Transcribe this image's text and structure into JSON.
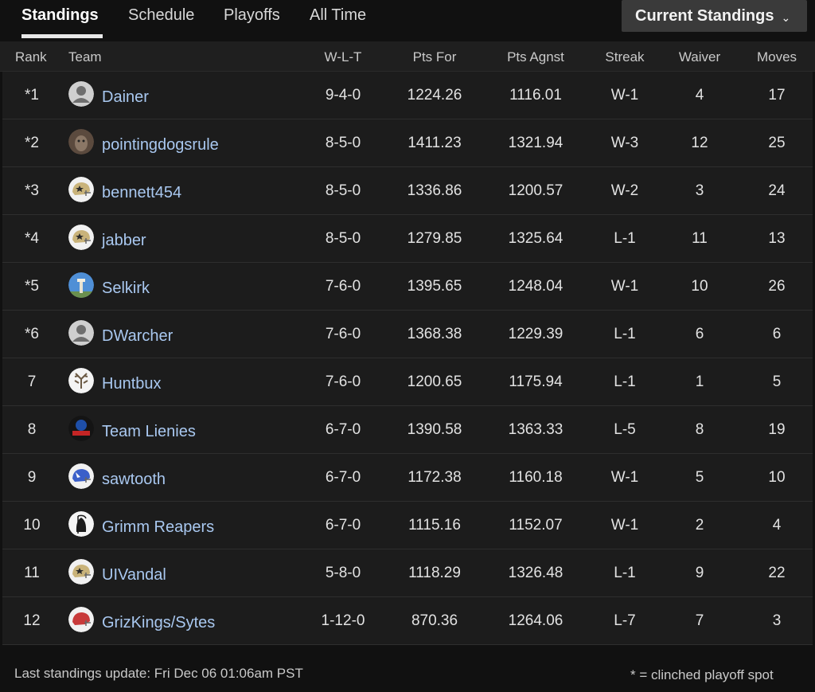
{
  "tabs": [
    {
      "label": "Standings"
    },
    {
      "label": "Schedule"
    },
    {
      "label": "Playoffs"
    },
    {
      "label": "All Time"
    }
  ],
  "dropdown": {
    "label": "Current Standings",
    "chevron": "⌄"
  },
  "columns": {
    "rank": "Rank",
    "team": "Team",
    "wlt": "W-L-T",
    "pts_for": "Pts For",
    "pts_agnst": "Pts Agnst",
    "streak": "Streak",
    "waiver": "Waiver",
    "moves": "Moves"
  },
  "rows": [
    {
      "rank": "*1",
      "team": "Dainer",
      "wlt": "9-4-0",
      "pts_for": "1224.26",
      "pts_agnst": "1116.01",
      "streak": "W-1",
      "waiver": "4",
      "moves": "17",
      "avatar": "default-avatar"
    },
    {
      "rank": "*2",
      "team": "pointingdogsrule",
      "wlt": "8-5-0",
      "pts_for": "1411.23",
      "pts_agnst": "1321.94",
      "streak": "W-3",
      "waiver": "12",
      "moves": "25",
      "avatar": "dog-photo-avatar"
    },
    {
      "rank": "*3",
      "team": "bennett454",
      "wlt": "8-5-0",
      "pts_for": "1336.86",
      "pts_agnst": "1200.57",
      "streak": "W-2",
      "waiver": "3",
      "moves": "24",
      "avatar": "gold-helmet-avatar"
    },
    {
      "rank": "*4",
      "team": "jabber",
      "wlt": "8-5-0",
      "pts_for": "1279.85",
      "pts_agnst": "1325.64",
      "streak": "L-1",
      "waiver": "11",
      "moves": "13",
      "avatar": "gold-helmet-avatar"
    },
    {
      "rank": "*5",
      "team": "Selkirk",
      "wlt": "7-6-0",
      "pts_for": "1395.65",
      "pts_agnst": "1248.04",
      "streak": "W-1",
      "waiver": "10",
      "moves": "26",
      "avatar": "tower-photo-avatar"
    },
    {
      "rank": "*6",
      "team": "DWarcher",
      "wlt": "7-6-0",
      "pts_for": "1368.38",
      "pts_agnst": "1229.39",
      "streak": "L-1",
      "waiver": "6",
      "moves": "6",
      "avatar": "default-avatar"
    },
    {
      "rank": "7",
      "team": "Huntbux",
      "wlt": "7-6-0",
      "pts_for": "1200.65",
      "pts_agnst": "1175.94",
      "streak": "L-1",
      "waiver": "1",
      "moves": "5",
      "avatar": "antler-avatar"
    },
    {
      "rank": "8",
      "team": "Team Lienies",
      "wlt": "6-7-0",
      "pts_for": "1390.58",
      "pts_agnst": "1363.33",
      "streak": "L-5",
      "waiver": "8",
      "moves": "19",
      "avatar": "team-logo-avatar"
    },
    {
      "rank": "9",
      "team": "sawtooth",
      "wlt": "6-7-0",
      "pts_for": "1172.38",
      "pts_agnst": "1160.18",
      "streak": "W-1",
      "waiver": "5",
      "moves": "10",
      "avatar": "blue-helmet-avatar"
    },
    {
      "rank": "10",
      "team": "Grimm Reapers",
      "wlt": "6-7-0",
      "pts_for": "1115.16",
      "pts_agnst": "1152.07",
      "streak": "W-1",
      "waiver": "2",
      "moves": "4",
      "avatar": "reaper-avatar"
    },
    {
      "rank": "11",
      "team": "UIVandal",
      "wlt": "5-8-0",
      "pts_for": "1118.29",
      "pts_agnst": "1326.48",
      "streak": "L-1",
      "waiver": "9",
      "moves": "22",
      "avatar": "gold-helmet-avatar"
    },
    {
      "rank": "12",
      "team": "GrizKings/Sytes",
      "wlt": "1-12-0",
      "pts_for": "870.36",
      "pts_agnst": "1264.06",
      "streak": "L-7",
      "waiver": "7",
      "moves": "3",
      "avatar": "red-helmet-avatar"
    }
  ],
  "footer": {
    "last_update": "Last standings update: Fri Dec 06 01:06am PST",
    "legend": "* = clinched playoff spot"
  },
  "colors": {
    "background": "#111111",
    "row": "#1c1c1c",
    "link": "#a9c8f0",
    "helmet_gold": "#c9b37a",
    "helmet_blue": "#3b5fc9",
    "helmet_red": "#c83a3a"
  }
}
